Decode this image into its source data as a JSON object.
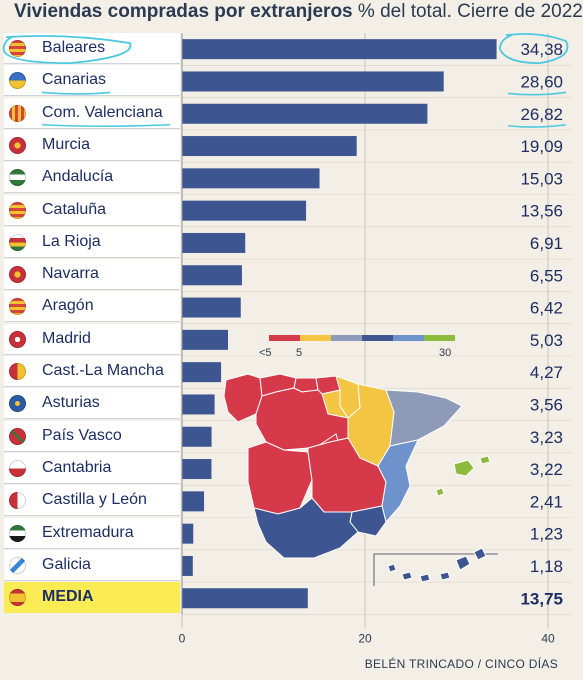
{
  "title": {
    "bold": "Viviendas compradas por extranjeros",
    "rest": " % del total. Cierre de 2022"
  },
  "credit": "BELÉN TRINCADO / CINCO DÍAS",
  "colors": {
    "bar": "#3d5590",
    "label_text": "#1c2e63",
    "highlight": "#fbec56",
    "annotation": "#4cc9e0"
  },
  "chart_data": {
    "type": "bar",
    "orientation": "horizontal",
    "categories": [
      "Baleares",
      "Canarias",
      "Com. Valenciana",
      "Murcia",
      "Andalucía",
      "Cataluña",
      "La Rioja",
      "Navarra",
      "Aragón",
      "Madrid",
      "Cast.-La Mancha",
      "Asturias",
      "País Vasco",
      "Cantabria",
      "Castilla y León",
      "Extremadura",
      "Galicia",
      "MEDIA"
    ],
    "values": [
      34.38,
      28.6,
      26.82,
      19.09,
      15.03,
      13.56,
      6.91,
      6.55,
      6.42,
      5.03,
      4.27,
      3.56,
      3.23,
      3.22,
      2.41,
      1.23,
      1.18,
      13.75
    ],
    "value_labels": [
      "34,38",
      "28,60",
      "26,82",
      "19,09",
      "15,03",
      "13,56",
      "6,91",
      "6,55",
      "6,42",
      "5,03",
      "4,27",
      "3,56",
      "3,23",
      "3,22",
      "2,41",
      "1,23",
      "1,18",
      "13,75"
    ],
    "highlighted_category": "MEDIA",
    "xlim": [
      0,
      40
    ],
    "xticks": [
      0,
      20,
      40
    ],
    "xtick_labels": [
      "0",
      "20",
      "40"
    ],
    "grid": true,
    "legend": {
      "placement": "inset-center",
      "labels": [
        "<5",
        "5",
        "30"
      ],
      "colors": [
        "#d63a4a",
        "#f4c542",
        "#8e9bb8",
        "#3d5590",
        "#6d92cc",
        "#8cbb3c"
      ]
    },
    "map_region_colors": {
      "galicia": "#d63a4a",
      "asturias": "#d63a4a",
      "cantabria": "#d63a4a",
      "pais-vasco": "#d63a4a",
      "castilla-leon": "#d63a4a",
      "madrid": "#d63a4a",
      "castilla-la-mancha": "#d63a4a",
      "extremadura": "#d63a4a",
      "navarra": "#f4c542",
      "la-rioja": "#f4c542",
      "aragon": "#f4c542",
      "cataluna": "#8e9bb8",
      "andalucia": "#3d5590",
      "murcia": "#3d5590",
      "com-valenciana": "#6d92cc",
      "baleares": "#8cbb3c",
      "canarias": "#3d5590"
    }
  }
}
